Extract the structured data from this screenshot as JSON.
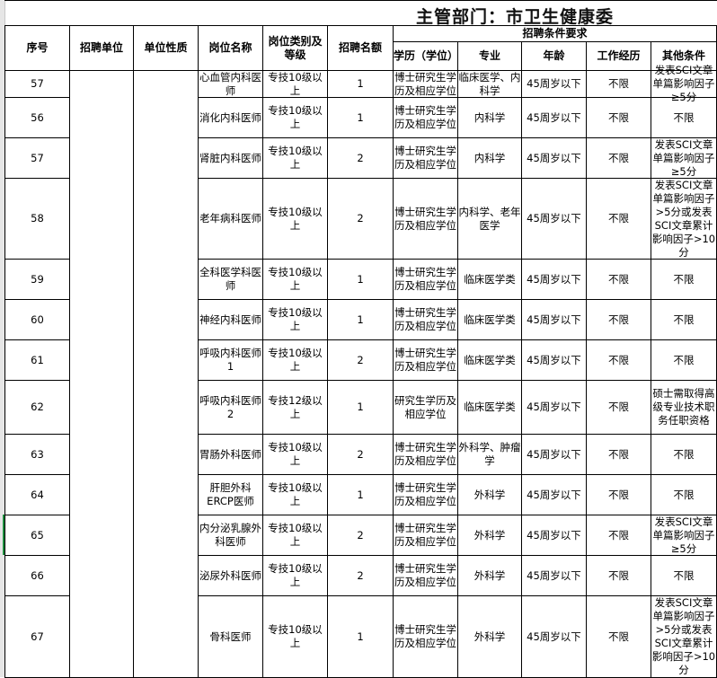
{
  "title": "主管部门：市卫生健康委",
  "headers": {
    "seq": "序号",
    "unit": "招聘单位",
    "nature": "单位性质",
    "post": "岗位名称",
    "type": "岗位类别及等级",
    "count": "招聘名额",
    "req": "招聘条件要求",
    "edu": "学历（学位）",
    "major": "专业",
    "age": "年龄",
    "exp": "工作经历",
    "other": "其他条件"
  },
  "rows": [
    {
      "seq": "57",
      "post": "心血管内科医师",
      "type": "专技10级以上",
      "count": "1",
      "edu": "博士研究生学历及相应学位",
      "major": "临床医学、内科学",
      "age": "45周岁以下",
      "exp": "不限",
      "other": "发表SCI文章单篇影响因子≥5分"
    },
    {
      "seq": "56",
      "post": "消化内科医师",
      "type": "专技10级以上",
      "count": "1",
      "edu": "博士研究生学历及相应学位",
      "major": "内科学",
      "age": "45周岁以下",
      "exp": "不限",
      "other": "不限"
    },
    {
      "seq": "57",
      "post": "肾脏内科医师",
      "type": "专技10级以上",
      "count": "2",
      "edu": "博士研究生学历及相应学位",
      "major": "内科学",
      "age": "45周岁以下",
      "exp": "不限",
      "other": "发表SCI文章单篇影响因子≥5分"
    },
    {
      "seq": "58",
      "post": "老年病科医师",
      "type": "专技10级以上",
      "count": "2",
      "edu": "博士研究生学历及相应学位",
      "major": "内科学、老年医学",
      "age": "45周岁以下",
      "exp": "不限",
      "other": "发表SCI文章单篇影响因子>5分或发表SCI文章累计影响因子>10分"
    },
    {
      "seq": "59",
      "post": "全科医学科医师",
      "type": "专技10级以上",
      "count": "1",
      "edu": "博士研究生学历及相应学位",
      "major": "临床医学类",
      "age": "45周岁以下",
      "exp": "不限",
      "other": "不限"
    },
    {
      "seq": "60",
      "post": "神经内科医师",
      "type": "专技10级以上",
      "count": "1",
      "edu": "博士研究生学历及相应学位",
      "major": "临床医学类",
      "age": "45周岁以下",
      "exp": "不限",
      "other": "不限"
    },
    {
      "seq": "61",
      "post": "呼吸内科医师1",
      "type": "专技10级以上",
      "count": "2",
      "edu": "博士研究生学历及相应学位",
      "major": "临床医学类",
      "age": "45周岁以下",
      "exp": "不限",
      "other": "不限"
    },
    {
      "seq": "62",
      "post": "呼吸内科医师2",
      "type": "专技12级以上",
      "count": "1",
      "edu": "研究生学历及相应学位",
      "major": "临床医学类",
      "age": "45周岁以下",
      "exp": "不限",
      "other": "硕士需取得高级专业技术职务任职资格"
    },
    {
      "seq": "63",
      "post": "胃肠外科医师",
      "type": "专技10级以上",
      "count": "2",
      "edu": "博士研究生学历及相应学位",
      "major": "外科学、肿瘤学",
      "age": "45周岁以下",
      "exp": "不限",
      "other": "不限"
    },
    {
      "seq": "64",
      "post": "肝胆外科ERCP医师",
      "type": "专技10级以上",
      "count": "1",
      "edu": "博士研究生学历及相应学位",
      "major": "外科学",
      "age": "45周岁以下",
      "exp": "不限",
      "other": "不限"
    },
    {
      "seq": "65",
      "post": "内分泌乳腺外科医师",
      "type": "专技10级以上",
      "count": "2",
      "edu": "博士研究生学历及相应学位",
      "major": "外科学",
      "age": "45周岁以下",
      "exp": "不限",
      "other": "发表SCI文章单篇影响因子≥5分"
    },
    {
      "seq": "66",
      "post": "泌尿外科医师",
      "type": "专技10级以上",
      "count": "2",
      "edu": "博士研究生学历及相应学位",
      "major": "外科学",
      "age": "45周岁以下",
      "exp": "不限",
      "other": "不限"
    },
    {
      "seq": "67",
      "post": "骨科医师",
      "type": "专技10级以上",
      "count": "1",
      "edu": "博士研究生学历及相应学位",
      "major": "外科学",
      "age": "45周岁以下",
      "exp": "不限",
      "other": "发表SCI文章单篇影响因子>5分或发表SCI文章累计影响因子>10分"
    }
  ]
}
